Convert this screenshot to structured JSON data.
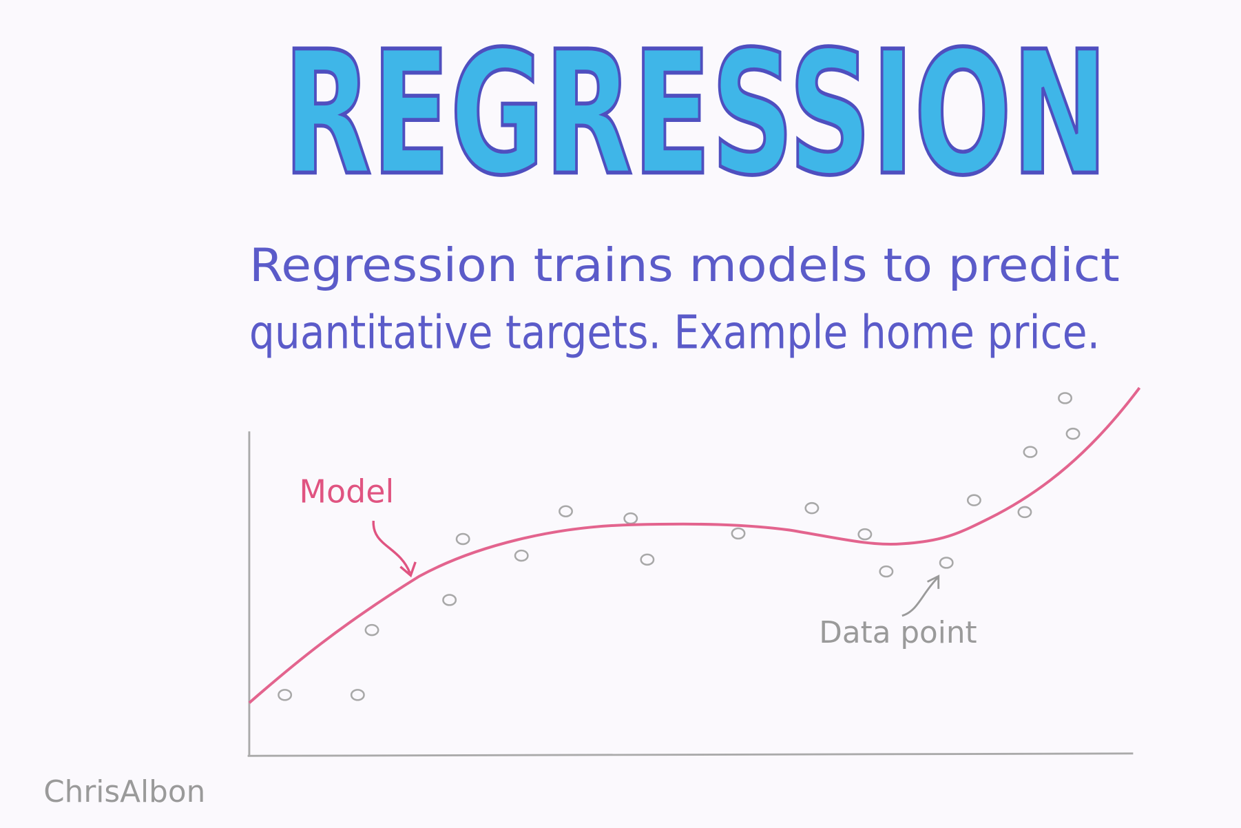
{
  "title": "REGRESSION",
  "description": {
    "lines": [
      "Regression trains models to predict",
      "quantitative targets. Example home price."
    ]
  },
  "labels": {
    "model": "Model",
    "data_point": "Data point"
  },
  "signature": "ChrisAlbon"
}
